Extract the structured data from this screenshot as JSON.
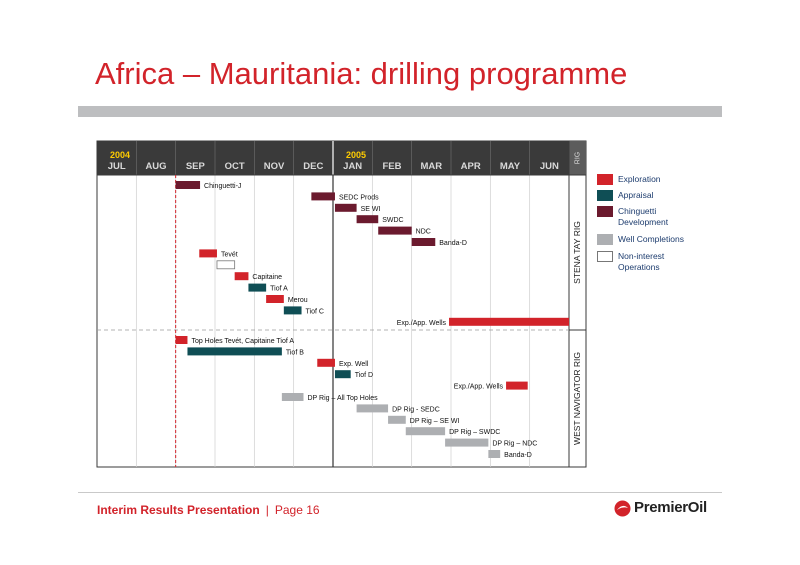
{
  "title": "Africa – Mauritania: drilling programme",
  "footer": {
    "text": "Interim Results Presentation",
    "separator": "|",
    "page": "Page 16"
  },
  "logo": {
    "text": "PremierOil",
    "icon": "premier-oil-logo-icon",
    "color": "#d2232a"
  },
  "colors": {
    "exploration": "#d2232a",
    "appraisal": "#0f4e55",
    "chinguetti_development": "#6b1a2e",
    "well_completions": "#adafb2",
    "non_interest": "#ffffff",
    "header": "#3a3a3a",
    "accent": "#d2232a"
  },
  "legend": [
    {
      "key": "exploration",
      "label": "Exploration"
    },
    {
      "key": "appraisal",
      "label": "Appraisal"
    },
    {
      "key": "chinguetti_development",
      "label": "Chinguetti Development"
    },
    {
      "key": "well_completions",
      "label": "Well Completions"
    },
    {
      "key": "non_interest",
      "label": "Non-interest Operations"
    }
  ],
  "chart_data": {
    "type": "gantt",
    "years": [
      {
        "label": "2004",
        "start_month": "JUL"
      },
      {
        "label": "2005",
        "start_month": "JAN"
      }
    ],
    "months": [
      "JUL",
      "AUG",
      "SEP",
      "OCT",
      "NOV",
      "DEC",
      "JAN",
      "FEB",
      "MAR",
      "APR",
      "MAY",
      "JUN"
    ],
    "rig_header": "RIG",
    "rigs": [
      "STENA TAY RIG",
      "WEST NAVIGATOR RIG"
    ],
    "current_date_marker_month_index": 2.0,
    "tasks": [
      {
        "rig": "STENA TAY RIG",
        "label": "Chinguetti-J",
        "type": "chinguetti_development",
        "start": 2.0,
        "end": 2.62
      },
      {
        "rig": "STENA TAY RIG",
        "label": "SEDC Prods",
        "type": "chinguetti_development",
        "start": 5.45,
        "end": 6.05
      },
      {
        "rig": "STENA TAY RIG",
        "label": "SE WI",
        "type": "chinguetti_development",
        "start": 6.05,
        "end": 6.6
      },
      {
        "rig": "STENA TAY RIG",
        "label": "SWDC",
        "type": "chinguetti_development",
        "start": 6.6,
        "end": 7.15
      },
      {
        "rig": "STENA TAY RIG",
        "label": "NDC",
        "type": "chinguetti_development",
        "start": 7.15,
        "end": 8.0
      },
      {
        "rig": "STENA TAY RIG",
        "label": "Banda-D",
        "type": "chinguetti_development",
        "start": 8.0,
        "end": 8.6
      },
      {
        "rig": "STENA TAY RIG",
        "label": "Tevét",
        "type": "exploration",
        "start": 2.6,
        "end": 3.05
      },
      {
        "rig": "STENA TAY RIG",
        "label": "",
        "type": "non_interest",
        "start": 3.05,
        "end": 3.5
      },
      {
        "rig": "STENA TAY RIG",
        "label": "Capitaine",
        "type": "exploration",
        "start": 3.5,
        "end": 3.85
      },
      {
        "rig": "STENA TAY RIG",
        "label": "Tiof A",
        "type": "appraisal",
        "start": 3.85,
        "end": 4.3
      },
      {
        "rig": "STENA TAY RIG",
        "label": "Merou",
        "type": "exploration",
        "start": 4.3,
        "end": 4.75
      },
      {
        "rig": "STENA TAY RIG",
        "label": "Tiof C",
        "type": "appraisal",
        "start": 4.75,
        "end": 5.2
      },
      {
        "rig": "STENA TAY RIG",
        "label": "Exp./App. Wells",
        "type": "exploration",
        "start": 8.95,
        "end": 12.0,
        "label_side": "left"
      },
      {
        "rig": "WEST NAVIGATOR RIG",
        "label": "Top Holes Tevét, Capitaine Tiof A",
        "type": "exploration",
        "start": 2.0,
        "end": 2.3
      },
      {
        "rig": "WEST NAVIGATOR RIG",
        "label": "Tiof B",
        "type": "appraisal",
        "start": 2.3,
        "end": 4.7
      },
      {
        "rig": "WEST NAVIGATOR RIG",
        "label": "Exp. Well",
        "type": "exploration",
        "start": 5.6,
        "end": 6.05
      },
      {
        "rig": "WEST NAVIGATOR RIG",
        "label": "Tiof D",
        "type": "appraisal",
        "start": 6.05,
        "end": 6.45
      },
      {
        "rig": "WEST NAVIGATOR RIG",
        "label": "Exp./App. Wells",
        "type": "exploration",
        "start": 10.4,
        "end": 10.95,
        "label_side": "left"
      },
      {
        "rig": "WEST NAVIGATOR RIG",
        "label": "DP Rig – All Top Holes",
        "type": "well_completions",
        "start": 4.7,
        "end": 5.25
      },
      {
        "rig": "WEST NAVIGATOR RIG",
        "label": "DP Rig - SEDC",
        "type": "well_completions",
        "start": 6.6,
        "end": 7.4
      },
      {
        "rig": "WEST NAVIGATOR RIG",
        "label": "DP Rig – SE WI",
        "type": "well_completions",
        "start": 7.4,
        "end": 7.85
      },
      {
        "rig": "WEST NAVIGATOR RIG",
        "label": "DP Rig – SWDC",
        "type": "well_completions",
        "start": 7.85,
        "end": 8.85
      },
      {
        "rig": "WEST NAVIGATOR RIG",
        "label": "DP Rig – NDC",
        "type": "well_completions",
        "start": 8.85,
        "end": 9.95
      },
      {
        "rig": "WEST NAVIGATOR RIG",
        "label": "Banda-D",
        "type": "well_completions",
        "start": 9.95,
        "end": 10.25
      }
    ]
  }
}
